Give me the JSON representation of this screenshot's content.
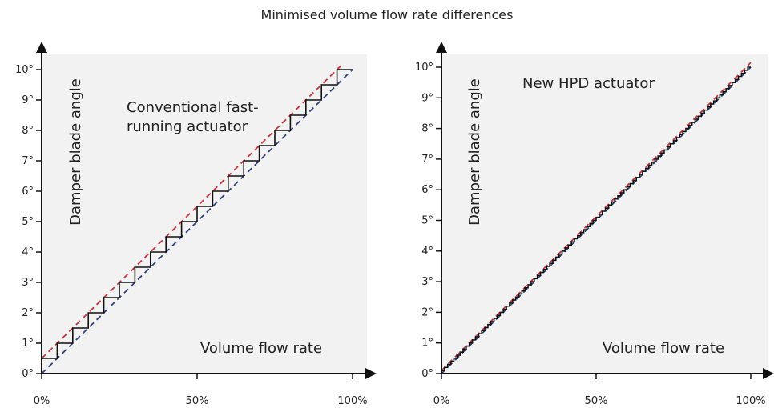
{
  "title": "Minimised volume flow rate differences",
  "chart_data": [
    {
      "type": "line",
      "title": "Conventional fast-running actuator",
      "annotation_lines": [
        "Conventional fast-",
        "running actuator"
      ],
      "xlabel": "Volume flow rate",
      "ylabel": "Damper blade angle",
      "xlim": [
        0,
        100
      ],
      "ylim": [
        0,
        10
      ],
      "x_ticks": [
        0,
        50,
        100
      ],
      "x_tick_labels": [
        "0%",
        "50%",
        "100%"
      ],
      "y_ticks": [
        0,
        1,
        2,
        3,
        4,
        5,
        6,
        7,
        8,
        9,
        10
      ],
      "y_tick_labels": [
        "0°",
        "1°",
        "2°",
        "3°",
        "4°",
        "5°",
        "6°",
        "7°",
        "8°",
        "9°",
        "10°"
      ],
      "grid": false,
      "series": [
        {
          "kind": "dashed",
          "color": "#c8323c",
          "x": [
            0,
            97
          ],
          "y": [
            0.5,
            10.2
          ]
        },
        {
          "kind": "dashed",
          "color": "#2f3f7f",
          "x": [
            0,
            100
          ],
          "y": [
            0,
            10
          ]
        },
        {
          "kind": "step",
          "color": "#111111",
          "step_width": 5,
          "step_height": 0.5,
          "x_range": [
            0,
            100
          ]
        }
      ]
    },
    {
      "type": "line",
      "title": "New HPD actuator",
      "annotation_lines": [
        "New HPD actuator"
      ],
      "xlabel": "Volume flow rate",
      "ylabel": "Damper blade angle",
      "xlim": [
        0,
        100
      ],
      "ylim": [
        0,
        10
      ],
      "x_ticks": [
        0,
        50,
        100
      ],
      "x_tick_labels": [
        "0%",
        "50%",
        "100%"
      ],
      "y_ticks": [
        0,
        1,
        2,
        3,
        4,
        5,
        6,
        7,
        8,
        9,
        10
      ],
      "y_tick_labels": [
        "0°",
        "1°",
        "2°",
        "3°",
        "4°",
        "5°",
        "6°",
        "7°",
        "8°",
        "9°",
        "10°"
      ],
      "grid": false,
      "series": [
        {
          "kind": "dashed",
          "color": "#c8323c",
          "x": [
            0,
            100
          ],
          "y": [
            0.1,
            10.15
          ]
        },
        {
          "kind": "dashed",
          "color": "#2f3f7f",
          "x": [
            0,
            100
          ],
          "y": [
            0,
            10
          ]
        },
        {
          "kind": "step",
          "color": "#111111",
          "step_width": 1,
          "step_height": 0.1,
          "x_range": [
            0,
            100
          ]
        }
      ]
    }
  ]
}
